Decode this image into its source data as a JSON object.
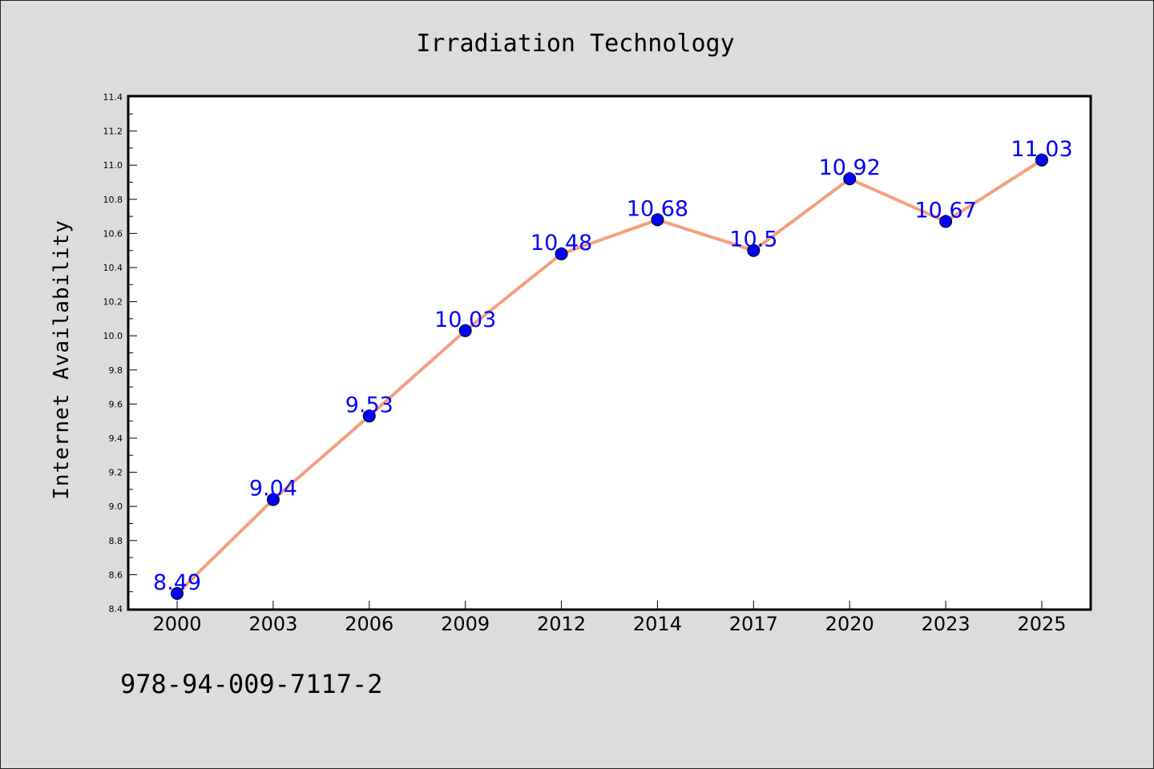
{
  "chart_data": {
    "type": "line",
    "title": "Irradiation Technology",
    "xlabel": "",
    "ylabel": "Internet Availability",
    "categories": [
      "2000",
      "2003",
      "2006",
      "2009",
      "2012",
      "2014",
      "2017",
      "2020",
      "2023",
      "2025"
    ],
    "series": [
      {
        "values": [
          8.49,
          9.04,
          9.53,
          10.03,
          10.48,
          10.68,
          10.5,
          10.92,
          10.67,
          11.03
        ],
        "line_color": "#f4a07c",
        "marker_color": "#0000ff"
      }
    ],
    "data_labels": [
      "8.49",
      "9.04",
      "9.53",
      "10.03",
      "10.48",
      "10.68",
      "10.5",
      "10.92",
      "10.67",
      "11.03"
    ],
    "ylim": [
      8.4,
      11.4
    ],
    "yticks": [
      "8.4",
      "8.6",
      "8.8",
      "9.0",
      "9.2",
      "9.4",
      "9.6",
      "9.8",
      "10.0",
      "10.2",
      "10.4",
      "10.6",
      "10.8",
      "11.0",
      "11.2",
      "11.4"
    ],
    "grid": false,
    "legend": "none",
    "plot_background": "#ffffff",
    "figure_background": "#dcdcdc"
  },
  "footer": {
    "isbn": "978-94-009-7117-2"
  }
}
